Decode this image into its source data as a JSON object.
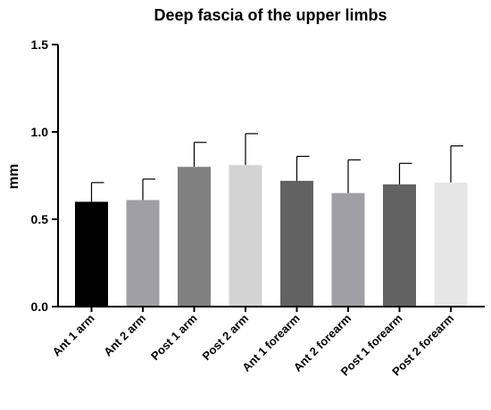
{
  "chart_data": {
    "type": "bar",
    "title": "Deep fascia of the upper limbs",
    "xlabel": "",
    "ylabel": "mm",
    "ylim": [
      0.0,
      1.5
    ],
    "yticks": [
      "0.0",
      "0.5",
      "1.0",
      "1.5"
    ],
    "grid": false,
    "error_bars": true,
    "categories": [
      "Ant 1 arm",
      "Ant 2 arm",
      "Post 1 arm",
      "Post 2 arm",
      "Ant 1 forearm",
      "Ant 2 forearm",
      "Post 1 forearm",
      "Post 2 forearm"
    ],
    "values": [
      0.6,
      0.61,
      0.8,
      0.81,
      0.72,
      0.65,
      0.7,
      0.71
    ],
    "errors": [
      0.11,
      0.12,
      0.14,
      0.18,
      0.14,
      0.19,
      0.12,
      0.21
    ],
    "colors": [
      "#000000",
      "#a0a0a4",
      "#808080",
      "#d3d3d3",
      "#626262",
      "#a0a0a4",
      "#626262",
      "#e6e6e6"
    ]
  }
}
